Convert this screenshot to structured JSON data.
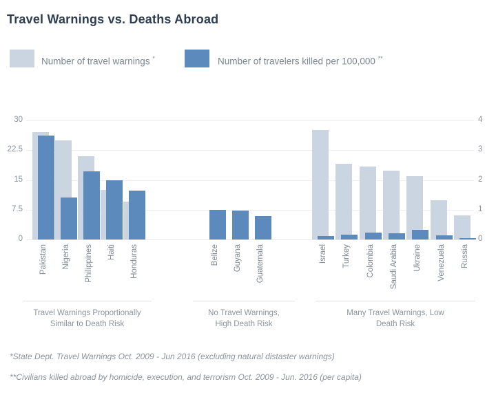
{
  "title": "Travel Warnings vs. Deaths Abroad",
  "colors": {
    "warnings_light": "#cbd5e2",
    "deaths_dark": "#5d8abc",
    "gridline": "#eeeef1",
    "title_text": "#2e3d4f",
    "secondary_text": "#8b939c"
  },
  "legend": {
    "items": [
      {
        "label": "Number of travel warnings",
        "sup": "*",
        "swatch": "warnings_light"
      },
      {
        "label": "Number of travelers killed per 100,000",
        "sup": "**",
        "swatch": "deaths_dark"
      }
    ]
  },
  "chart_data": {
    "type": "bar",
    "title": "Travel Warnings vs. Deaths Abroad",
    "left_axis": {
      "label": "Number of travel warnings",
      "ticks": [
        0,
        7.5,
        15,
        22.5,
        30
      ],
      "max": 30
    },
    "right_axis": {
      "label": "Number of travelers killed per 100,000",
      "ticks": [
        0,
        1,
        2,
        3,
        4
      ],
      "max": 4
    },
    "grid": true,
    "series_names": [
      "Number of travel warnings",
      "Number of travelers killed per 100,000"
    ],
    "groups": [
      {
        "caption": "Travel Warnings Proportionally Similar to Death Risk",
        "caption_lines": [
          "Travel Warnings Proportionally",
          "Similar to Death Risk"
        ],
        "countries": [
          "Pakistan",
          "Nigeria",
          "Philippines",
          "Haiti",
          "Honduras"
        ],
        "warnings": [
          27,
          25,
          21,
          12.4,
          9.5
        ],
        "deaths_per_100k": [
          3.5,
          1.4,
          2.3,
          2.0,
          1.65
        ]
      },
      {
        "caption": "No Travel Warnings, High Death Risk",
        "caption_lines": [
          "No Travel Warnings,",
          "High Death Risk"
        ],
        "countries": [
          "Belize",
          "Guyana",
          "Guatemala"
        ],
        "warnings": [
          0,
          0,
          0
        ],
        "deaths_per_100k": [
          1.0,
          0.97,
          0.78
        ]
      },
      {
        "caption": "Many Travel Warnings, Low Death Risk",
        "caption_lines": [
          "Many Travel Warnings, Low",
          "Death Risk"
        ],
        "countries": [
          "Israel",
          "Turkey",
          "Colombia",
          "Saudi Arabia",
          "Ukraine",
          "Venezuela",
          "Russia"
        ],
        "warnings": [
          27.5,
          19,
          18.4,
          17.3,
          16,
          9.8,
          6
        ],
        "deaths_per_100k": [
          0.11,
          0.17,
          0.22,
          0.2,
          0.32,
          0.13,
          0.04
        ]
      }
    ]
  },
  "footnotes": [
    "*State Dept. Travel Warnings Oct. 2009 - Jun 2016 (excluding natural distaster warnings)",
    "**Civilians killed abroad by homicide, execution, and terrorism Oct. 2009 - Jun. 2016 (per capita)"
  ]
}
